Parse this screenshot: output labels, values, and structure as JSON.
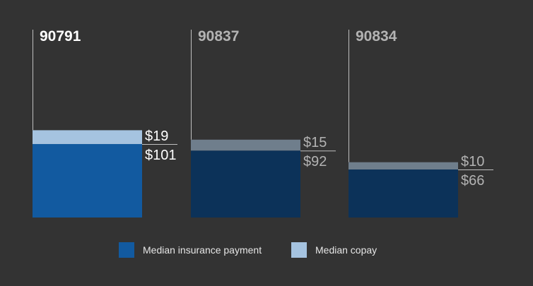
{
  "chart_data": {
    "type": "bar",
    "stacked": true,
    "categories": [
      "90791",
      "90837",
      "90834"
    ],
    "series": [
      {
        "name": "Median insurance payment",
        "values": [
          101,
          92,
          66
        ],
        "labels": [
          "$101",
          "$92",
          "$66"
        ]
      },
      {
        "name": "Median copay",
        "values": [
          19,
          15,
          10
        ],
        "labels": [
          "$19",
          "$15",
          "$10"
        ]
      }
    ],
    "highlighted_category": "90791",
    "ylim": [
      0,
      160
    ],
    "grid": false,
    "legend_position": "bottom-center",
    "colors": {
      "background": "#333333",
      "insurance_highlight": "#125aa0",
      "copay_highlight": "#a5c3e0",
      "insurance_dim": "#0c3259",
      "copay_dim": "#6f7e8c",
      "label_highlight": "#ffffff",
      "label_dim": "#b3b3b3",
      "axis_line": "#bfbfbf"
    }
  },
  "legend": {
    "insurance_label": "Median insurance payment",
    "copay_label": "Median copay"
  }
}
